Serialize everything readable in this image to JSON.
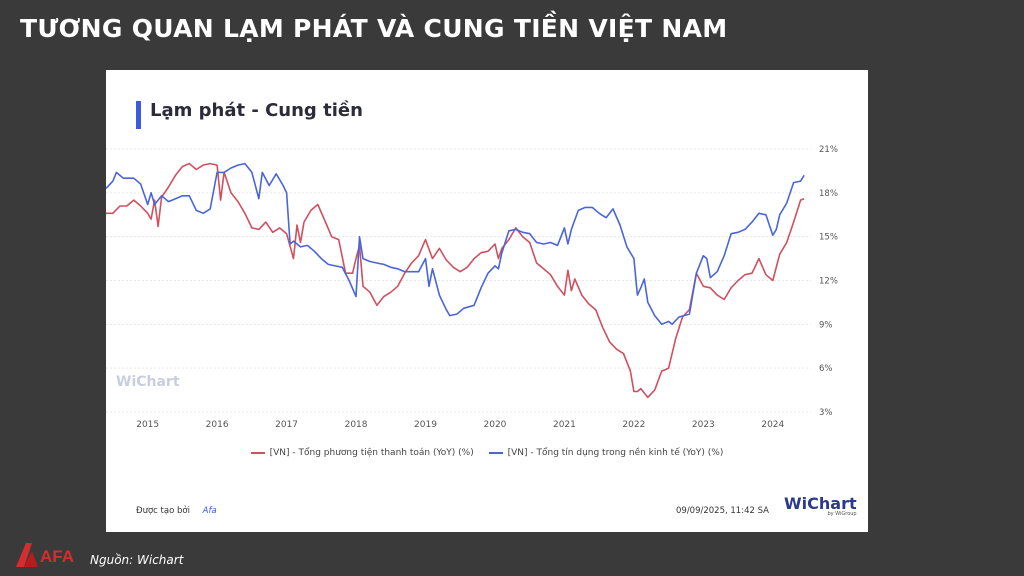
{
  "slide": {
    "title": "TƯƠNG QUAN LẠM PHÁT VÀ CUNG TIỀN VIỆT NAM",
    "source": "Nguồn: Wichart",
    "logo_text": "AFA"
  },
  "card": {
    "title": "Lạm phát - Cung tiền",
    "created_by_label": "Được tạo bởi",
    "created_by": "Afa",
    "timestamp": "09/09/2025, 11:42 SA",
    "brand": "WiChart",
    "brand_sub": "by WiGroup",
    "watermark": "WiChart"
  },
  "colors": {
    "money_supply": "#d0505f",
    "credit": "#4a65d8",
    "accent": "#3b5bdb",
    "slide_bg": "#3a3a3a"
  },
  "chart_data": {
    "type": "line",
    "title": "Lạm phát - Cung tiền",
    "ylim": [
      3,
      21
    ],
    "yticks": [
      3,
      6,
      9,
      12,
      15,
      18,
      21
    ],
    "ytick_labels": [
      "3%",
      "6%",
      "9%",
      "12%",
      "15%",
      "18%",
      "21%"
    ],
    "xlim": [
      2014.4,
      2024.55
    ],
    "xticks": [
      2015,
      2016,
      2017,
      2018,
      2019,
      2020,
      2021,
      2022,
      2023,
      2024
    ],
    "xtick_labels": [
      "2015",
      "2016",
      "2017",
      "2018",
      "2019",
      "2020",
      "2021",
      "2022",
      "2023",
      "2024"
    ],
    "grid": true,
    "legend_position": "bottom",
    "series": [
      {
        "name": "[VN] - Tổng phương tiện thanh toán (YoY) (%)",
        "color": "#d0505f",
        "points": [
          [
            2014.4,
            16.6
          ],
          [
            2014.5,
            16.6
          ],
          [
            2014.6,
            17.1
          ],
          [
            2014.7,
            17.1
          ],
          [
            2014.8,
            17.5
          ],
          [
            2014.9,
            17.1
          ],
          [
            2015.0,
            16.6
          ],
          [
            2015.05,
            16.2
          ],
          [
            2015.1,
            17.5
          ],
          [
            2015.15,
            15.7
          ],
          [
            2015.2,
            17.7
          ],
          [
            2015.3,
            18.4
          ],
          [
            2015.4,
            19.2
          ],
          [
            2015.5,
            19.8
          ],
          [
            2015.6,
            20.0
          ],
          [
            2015.7,
            19.6
          ],
          [
            2015.8,
            19.9
          ],
          [
            2015.9,
            20.0
          ],
          [
            2016.0,
            19.9
          ],
          [
            2016.05,
            17.5
          ],
          [
            2016.1,
            19.4
          ],
          [
            2016.2,
            18.0
          ],
          [
            2016.3,
            17.4
          ],
          [
            2016.4,
            16.6
          ],
          [
            2016.5,
            15.6
          ],
          [
            2016.6,
            15.5
          ],
          [
            2016.7,
            16.0
          ],
          [
            2016.8,
            15.3
          ],
          [
            2016.9,
            15.6
          ],
          [
            2017.0,
            15.2
          ],
          [
            2017.1,
            13.5
          ],
          [
            2017.15,
            15.8
          ],
          [
            2017.2,
            14.6
          ],
          [
            2017.25,
            16.0
          ],
          [
            2017.35,
            16.8
          ],
          [
            2017.45,
            17.2
          ],
          [
            2017.55,
            16.1
          ],
          [
            2017.65,
            15.0
          ],
          [
            2017.75,
            14.8
          ],
          [
            2017.85,
            12.5
          ],
          [
            2017.95,
            12.5
          ],
          [
            2018.0,
            13.5
          ],
          [
            2018.05,
            14.4
          ],
          [
            2018.1,
            11.6
          ],
          [
            2018.2,
            11.2
          ],
          [
            2018.3,
            10.3
          ],
          [
            2018.4,
            10.9
          ],
          [
            2018.5,
            11.2
          ],
          [
            2018.6,
            11.6
          ],
          [
            2018.7,
            12.5
          ],
          [
            2018.8,
            13.2
          ],
          [
            2018.9,
            13.7
          ],
          [
            2019.0,
            14.8
          ],
          [
            2019.1,
            13.5
          ],
          [
            2019.2,
            14.2
          ],
          [
            2019.3,
            13.4
          ],
          [
            2019.4,
            12.9
          ],
          [
            2019.5,
            12.6
          ],
          [
            2019.6,
            12.9
          ],
          [
            2019.7,
            13.5
          ],
          [
            2019.8,
            13.9
          ],
          [
            2019.9,
            14.0
          ],
          [
            2020.0,
            14.5
          ],
          [
            2020.05,
            13.5
          ],
          [
            2020.1,
            14.2
          ],
          [
            2020.2,
            14.8
          ],
          [
            2020.3,
            15.6
          ],
          [
            2020.4,
            15.0
          ],
          [
            2020.5,
            14.6
          ],
          [
            2020.6,
            13.2
          ],
          [
            2020.7,
            12.8
          ],
          [
            2020.8,
            12.4
          ],
          [
            2020.9,
            11.6
          ],
          [
            2021.0,
            11.0
          ],
          [
            2021.05,
            12.7
          ],
          [
            2021.1,
            11.3
          ],
          [
            2021.15,
            12.1
          ],
          [
            2021.25,
            11.0
          ],
          [
            2021.35,
            10.4
          ],
          [
            2021.45,
            10.0
          ],
          [
            2021.55,
            8.8
          ],
          [
            2021.65,
            7.8
          ],
          [
            2021.75,
            7.3
          ],
          [
            2021.85,
            7.0
          ],
          [
            2021.95,
            5.8
          ],
          [
            2022.0,
            4.4
          ],
          [
            2022.05,
            4.4
          ],
          [
            2022.1,
            4.6
          ],
          [
            2022.15,
            4.3
          ],
          [
            2022.2,
            4.0
          ],
          [
            2022.3,
            4.5
          ],
          [
            2022.4,
            5.8
          ],
          [
            2022.5,
            6.0
          ],
          [
            2022.55,
            7.0
          ],
          [
            2022.6,
            8.0
          ],
          [
            2022.7,
            9.5
          ],
          [
            2022.8,
            10.0
          ],
          [
            2022.9,
            12.5
          ],
          [
            2023.0,
            11.6
          ],
          [
            2023.1,
            11.5
          ],
          [
            2023.2,
            11.0
          ],
          [
            2023.3,
            10.7
          ],
          [
            2023.4,
            11.5
          ],
          [
            2023.5,
            12.0
          ],
          [
            2023.6,
            12.4
          ],
          [
            2023.7,
            12.5
          ],
          [
            2023.8,
            13.5
          ],
          [
            2023.9,
            12.4
          ],
          [
            2024.0,
            12.0
          ],
          [
            2024.1,
            13.8
          ],
          [
            2024.2,
            14.6
          ],
          [
            2024.3,
            16.0
          ],
          [
            2024.4,
            17.5
          ],
          [
            2024.45,
            17.6
          ]
        ]
      },
      {
        "name": "[VN] - Tổng tín dụng trong nền kinh tế (YoY) (%)",
        "color": "#4a65d8",
        "points": [
          [
            2014.4,
            18.3
          ],
          [
            2014.5,
            18.8
          ],
          [
            2014.55,
            19.4
          ],
          [
            2014.65,
            19.0
          ],
          [
            2014.8,
            19.0
          ],
          [
            2014.9,
            18.6
          ],
          [
            2015.0,
            17.2
          ],
          [
            2015.05,
            18.0
          ],
          [
            2015.1,
            17.2
          ],
          [
            2015.2,
            17.8
          ],
          [
            2015.3,
            17.4
          ],
          [
            2015.4,
            17.6
          ],
          [
            2015.5,
            17.8
          ],
          [
            2015.6,
            17.8
          ],
          [
            2015.7,
            16.8
          ],
          [
            2015.8,
            16.6
          ],
          [
            2015.9,
            16.9
          ],
          [
            2016.0,
            19.4
          ],
          [
            2016.1,
            19.4
          ],
          [
            2016.2,
            19.7
          ],
          [
            2016.3,
            19.9
          ],
          [
            2016.4,
            20.0
          ],
          [
            2016.5,
            19.4
          ],
          [
            2016.6,
            17.6
          ],
          [
            2016.65,
            19.4
          ],
          [
            2016.75,
            18.5
          ],
          [
            2016.85,
            19.3
          ],
          [
            2016.95,
            18.5
          ],
          [
            2017.0,
            18.0
          ],
          [
            2017.05,
            14.5
          ],
          [
            2017.1,
            14.7
          ],
          [
            2017.2,
            14.3
          ],
          [
            2017.3,
            14.4
          ],
          [
            2017.4,
            14.0
          ],
          [
            2017.5,
            13.5
          ],
          [
            2017.6,
            13.1
          ],
          [
            2017.7,
            13.0
          ],
          [
            2017.8,
            12.9
          ],
          [
            2017.9,
            12.0
          ],
          [
            2018.0,
            10.9
          ],
          [
            2018.05,
            15.0
          ],
          [
            2018.1,
            13.5
          ],
          [
            2018.2,
            13.3
          ],
          [
            2018.3,
            13.2
          ],
          [
            2018.4,
            13.1
          ],
          [
            2018.5,
            12.9
          ],
          [
            2018.6,
            12.8
          ],
          [
            2018.7,
            12.6
          ],
          [
            2018.8,
            12.6
          ],
          [
            2018.9,
            12.6
          ],
          [
            2019.0,
            13.5
          ],
          [
            2019.05,
            11.6
          ],
          [
            2019.1,
            12.8
          ],
          [
            2019.2,
            11.0
          ],
          [
            2019.3,
            10.0
          ],
          [
            2019.35,
            9.6
          ],
          [
            2019.45,
            9.7
          ],
          [
            2019.55,
            10.1
          ],
          [
            2019.7,
            10.3
          ],
          [
            2019.8,
            11.5
          ],
          [
            2019.9,
            12.5
          ],
          [
            2020.0,
            13.0
          ],
          [
            2020.05,
            12.8
          ],
          [
            2020.1,
            13.9
          ],
          [
            2020.2,
            15.4
          ],
          [
            2020.3,
            15.5
          ],
          [
            2020.4,
            15.3
          ],
          [
            2020.5,
            15.2
          ],
          [
            2020.6,
            14.6
          ],
          [
            2020.7,
            14.5
          ],
          [
            2020.8,
            14.6
          ],
          [
            2020.9,
            14.4
          ],
          [
            2021.0,
            15.6
          ],
          [
            2021.05,
            14.5
          ],
          [
            2021.1,
            15.5
          ],
          [
            2021.2,
            16.8
          ],
          [
            2021.3,
            17.0
          ],
          [
            2021.4,
            17.0
          ],
          [
            2021.5,
            16.6
          ],
          [
            2021.6,
            16.3
          ],
          [
            2021.7,
            16.9
          ],
          [
            2021.8,
            15.8
          ],
          [
            2021.9,
            14.3
          ],
          [
            2022.0,
            13.5
          ],
          [
            2022.05,
            11.0
          ],
          [
            2022.1,
            11.5
          ],
          [
            2022.15,
            12.1
          ],
          [
            2022.2,
            10.5
          ],
          [
            2022.3,
            9.6
          ],
          [
            2022.4,
            9.0
          ],
          [
            2022.5,
            9.2
          ],
          [
            2022.55,
            9.0
          ],
          [
            2022.65,
            9.5
          ],
          [
            2022.8,
            9.7
          ],
          [
            2022.9,
            12.5
          ],
          [
            2023.0,
            13.7
          ],
          [
            2023.05,
            13.5
          ],
          [
            2023.1,
            12.2
          ],
          [
            2023.2,
            12.6
          ],
          [
            2023.3,
            13.7
          ],
          [
            2023.4,
            15.2
          ],
          [
            2023.5,
            15.3
          ],
          [
            2023.6,
            15.5
          ],
          [
            2023.7,
            16.0
          ],
          [
            2023.8,
            16.6
          ],
          [
            2023.9,
            16.5
          ],
          [
            2024.0,
            15.1
          ],
          [
            2024.05,
            15.5
          ],
          [
            2024.1,
            16.5
          ],
          [
            2024.2,
            17.3
          ],
          [
            2024.3,
            18.7
          ],
          [
            2024.4,
            18.8
          ],
          [
            2024.45,
            19.2
          ]
        ]
      }
    ]
  }
}
